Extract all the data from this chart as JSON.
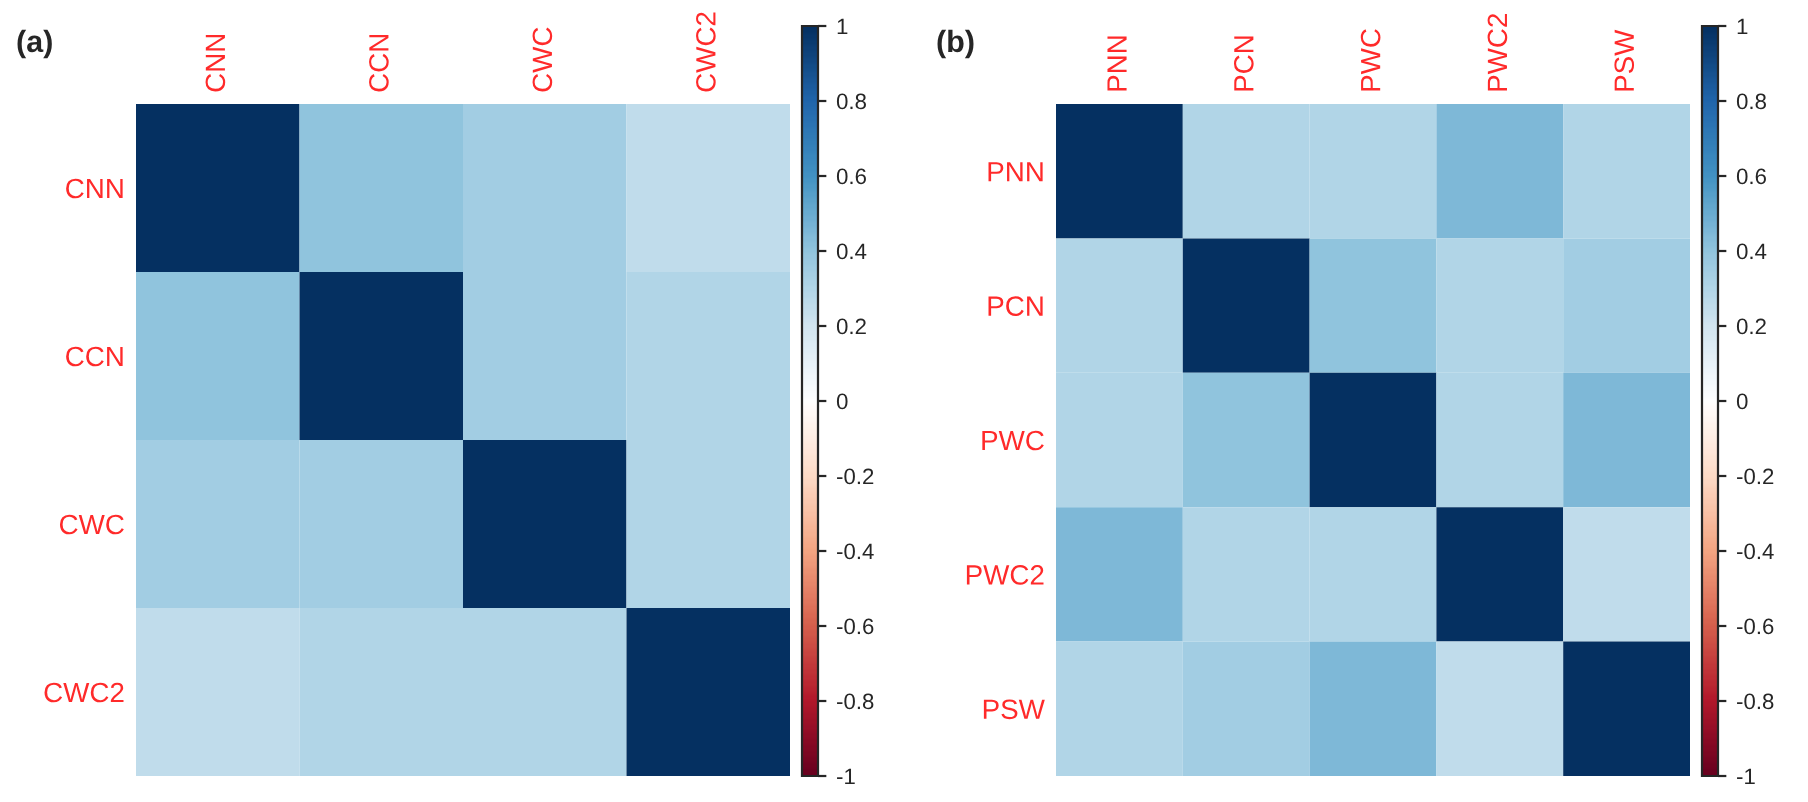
{
  "chart_data": [
    {
      "type": "heatmap",
      "title": "(a)",
      "categories": [
        "CNN",
        "CCN",
        "CWC",
        "CWC2"
      ],
      "y_categories": [
        "CNN",
        "CCN",
        "CWC",
        "CWC2"
      ],
      "cells": [
        [
          1,
          0.4,
          0.35,
          0.25
        ],
        [
          0.4,
          1,
          0.35,
          0.3
        ],
        [
          0.35,
          0.35,
          1,
          0.3
        ],
        [
          0.25,
          0.3,
          0.3,
          1
        ]
      ],
      "clim": [
        -1,
        1
      ],
      "cticks": [
        -1,
        -0.8,
        -0.6,
        -0.4,
        -0.2,
        0,
        0.2,
        0.4,
        0.6,
        0.8,
        1
      ]
    },
    {
      "type": "heatmap",
      "title": "(b)",
      "categories": [
        "PNN",
        "PCN",
        "PWC",
        "PWC2",
        "PSW"
      ],
      "y_categories": [
        "PNN",
        "PCN",
        "PWC",
        "PWC2",
        "PSW"
      ],
      "cells": [
        [
          1,
          0.3,
          0.3,
          0.45,
          0.3
        ],
        [
          0.3,
          1,
          0.4,
          0.3,
          0.35
        ],
        [
          0.3,
          0.4,
          1,
          0.3,
          0.45
        ],
        [
          0.45,
          0.3,
          0.3,
          1,
          0.25
        ],
        [
          0.3,
          0.35,
          0.45,
          0.25,
          1
        ]
      ],
      "clim": [
        -1,
        1
      ],
      "cticks": [
        -1,
        -0.8,
        -0.6,
        -0.4,
        -0.2,
        0,
        0.2,
        0.4,
        0.6,
        0.8,
        1
      ]
    }
  ]
}
